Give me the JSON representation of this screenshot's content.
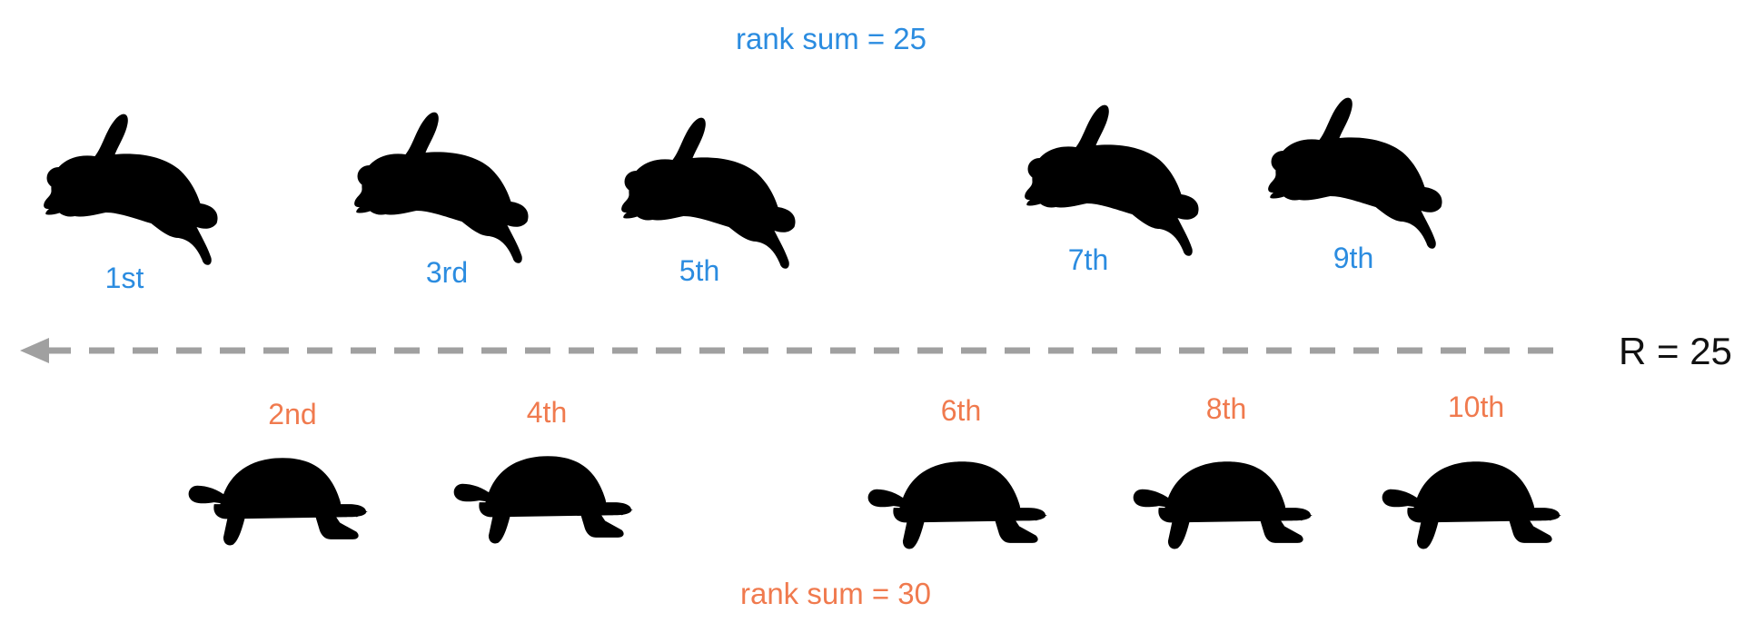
{
  "top_sum_label": "rank sum = 25",
  "bottom_sum_label": "rank sum = 30",
  "result_label": "R = 25",
  "rabbit_ranks": [
    "1st",
    "3rd",
    "5th",
    "7th",
    "9th"
  ],
  "turtle_ranks": [
    "2nd",
    "4th",
    "6th",
    "8th",
    "10th"
  ],
  "colors": {
    "rabbit": "#1B77D6",
    "rabbit_text": "#2B8CE0",
    "turtle": "#D84416",
    "turtle_text": "#F07A4E",
    "arrow": "#A0A0A0"
  },
  "icons": {
    "rabbit": "rabbit-icon",
    "turtle": "turtle-icon",
    "arrow": "arrow-left-icon"
  }
}
